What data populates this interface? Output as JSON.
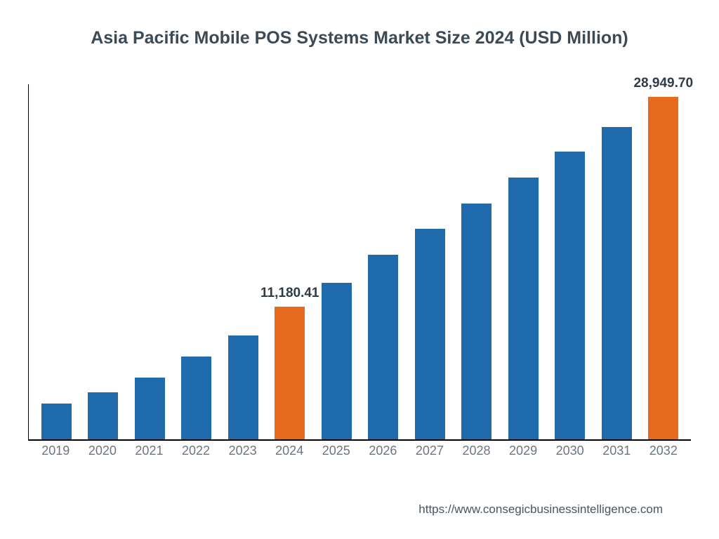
{
  "type": "bar",
  "title": "Asia Pacific Mobile POS Systems Market Size 2024 (USD Million)",
  "title_fontsize": 25,
  "title_color": "#3b4a57",
  "background_color": "#ffffff",
  "axis_color": "#000000",
  "ylim": [
    0,
    30000
  ],
  "bar_width_ratio": 0.64,
  "value_label_fontsize": 19,
  "value_label_color": "#2f3b47",
  "x_label_fontsize": 18,
  "x_label_color": "#6b7680",
  "colors": {
    "default": "#1f6bab",
    "highlight": "#e86a1e"
  },
  "categories": [
    "2019",
    "2020",
    "2021",
    "2022",
    "2023",
    "2024",
    "2025",
    "2026",
    "2027",
    "2028",
    "2029",
    "2030",
    "2031",
    "2032"
  ],
  "values": [
    3000,
    4000,
    5200,
    7000,
    8800,
    11180.41,
    13200,
    15600,
    17800,
    19900,
    22100,
    24300,
    26400,
    28949.7
  ],
  "bar_colors": [
    "#1f6bab",
    "#1f6bab",
    "#1f6bab",
    "#1f6bab",
    "#1f6bab",
    "#e86a1e",
    "#1f6bab",
    "#1f6bab",
    "#1f6bab",
    "#1f6bab",
    "#1f6bab",
    "#1f6bab",
    "#1f6bab",
    "#e86a1e"
  ],
  "value_labels": [
    "",
    "",
    "",
    "",
    "",
    "11,180.41",
    "",
    "",
    "",
    "",
    "",
    "",
    "",
    "28,949.70"
  ],
  "footer_text": "https://www.consegicbusinessintelligence.com",
  "footer_fontsize": 17,
  "footer_color": "#4a5560"
}
